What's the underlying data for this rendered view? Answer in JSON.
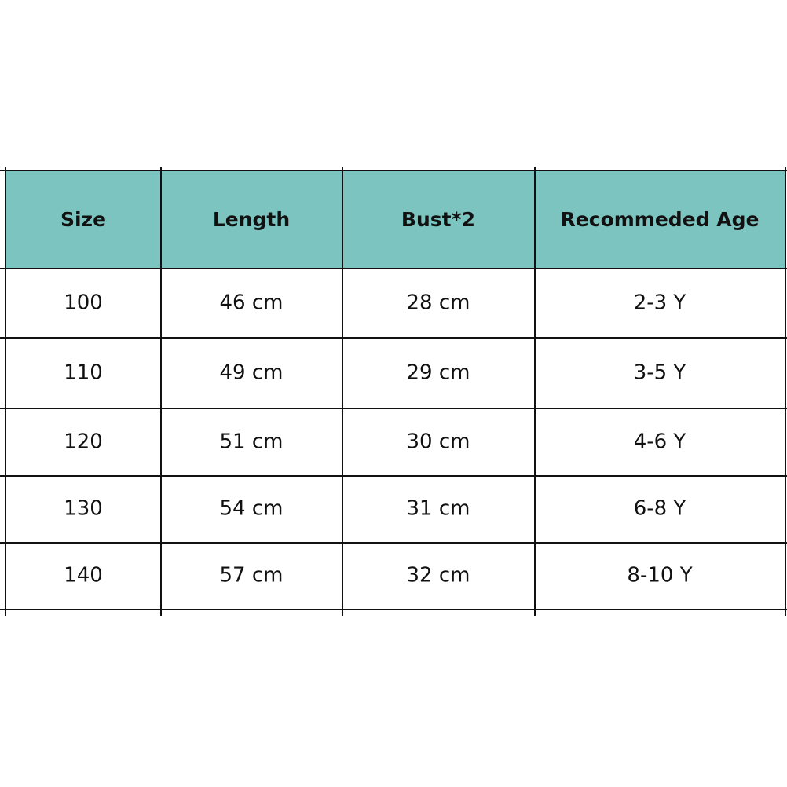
{
  "table": {
    "headers": [
      "Size",
      "Length",
      "Bust*2",
      "Recommeded Age"
    ],
    "rows": [
      [
        "100",
        "46 cm",
        "28 cm",
        "2-3 Y"
      ],
      [
        "110",
        "49 cm",
        "29 cm",
        "3-5 Y"
      ],
      [
        "120",
        "51 cm",
        "30 cm",
        "4-6 Y"
      ],
      [
        "130",
        "54 cm",
        "31 cm",
        "6-8 Y"
      ],
      [
        "140",
        "57 cm",
        "32 cm",
        "8-10 Y"
      ]
    ]
  }
}
